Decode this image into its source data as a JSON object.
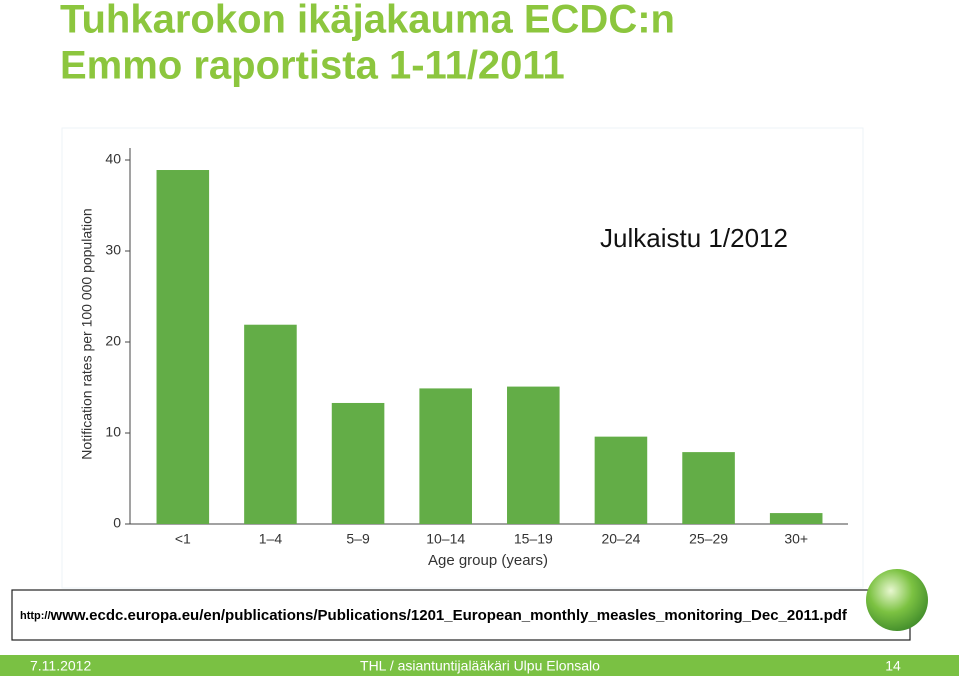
{
  "title": [
    "Tuhkarokon ikäjakauma ECDC:n",
    "Emmo raportista 1-11/2011"
  ],
  "chart_data": {
    "type": "bar",
    "annotation": "Julkaistu 1/2012",
    "xlabel": "Age group (years)",
    "ylabel": "Notification rates per 100 000 population",
    "categories": [
      "<1",
      "1–4",
      "5–9",
      "10–14",
      "15–19",
      "20–24",
      "25–29",
      "30+"
    ],
    "values": [
      38.9,
      21.9,
      13.3,
      14.9,
      15.1,
      9.6,
      7.9,
      1.2
    ],
    "color": "#63ad47",
    "ylim": [
      0,
      40
    ],
    "yticks": [
      0,
      10,
      20,
      30,
      40
    ]
  },
  "source": {
    "prefix": "http://",
    "url": "www.ecdc.europa.eu/en/publications/Publications/1201_European_monthly_measles_monitoring_Dec_2011.pdf"
  },
  "footer": {
    "date": "7.11.2012",
    "author": "THL / asiantuntijalääkäri Ulpu Elonsalo",
    "page": "14"
  }
}
